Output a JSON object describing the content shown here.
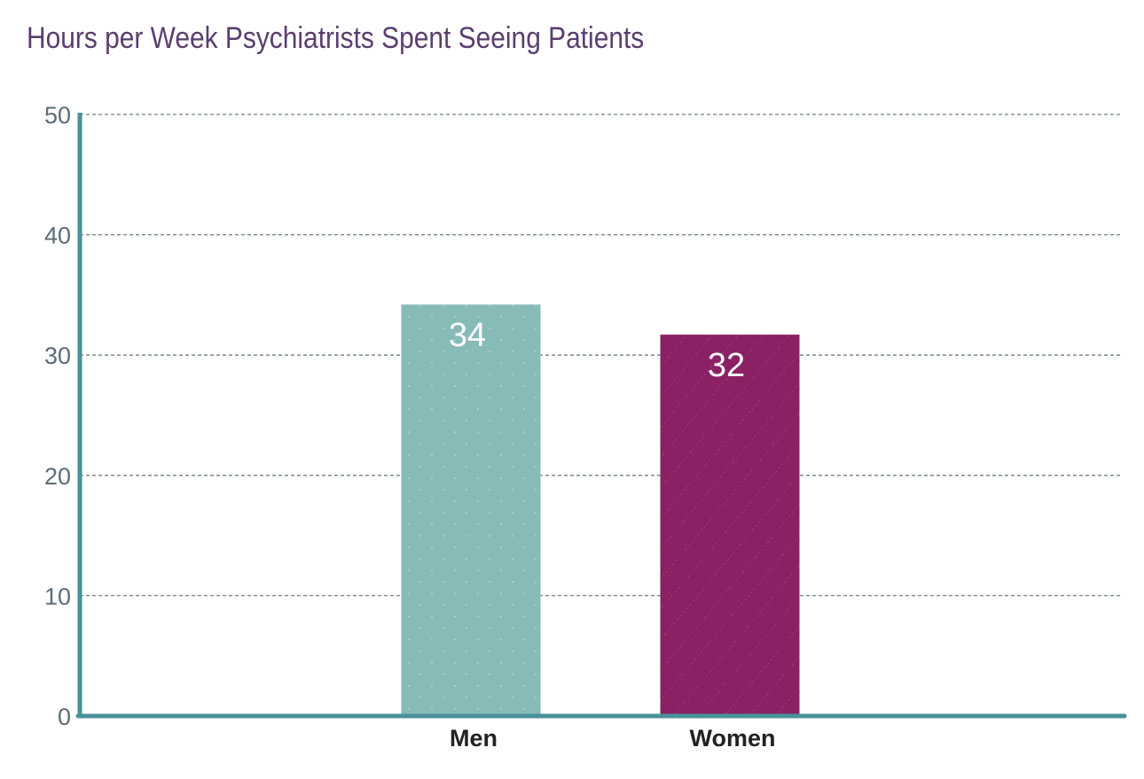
{
  "chart_data": {
    "type": "bar",
    "title": "Hours per Week Psychiatrists Spent Seeing Patients",
    "categories": [
      "Men",
      "Women"
    ],
    "values": [
      34.2,
      31.7
    ],
    "data_labels": [
      "34",
      "32"
    ],
    "colors": [
      "#86bbb8",
      "#8a2164"
    ],
    "axis_color": "#4a9199",
    "xlabel": "",
    "ylabel": "",
    "ylim": [
      0,
      50
    ],
    "yticks": [
      0,
      10,
      20,
      30,
      40,
      50
    ],
    "grid": true,
    "legend": "none"
  }
}
